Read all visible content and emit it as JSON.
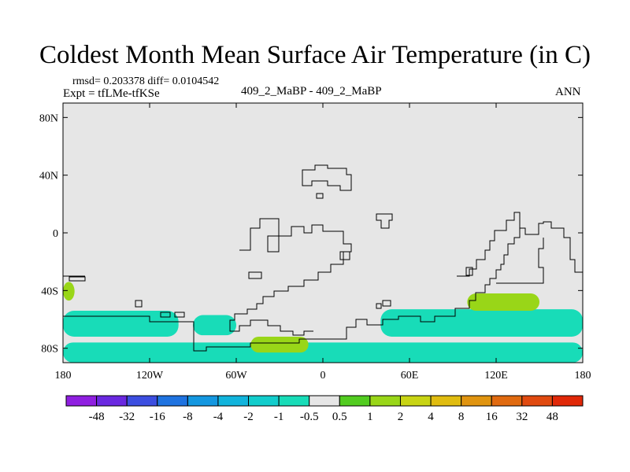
{
  "title": "Coldest Month Mean Surface Air Temperature (in C)",
  "stats": "rmsd= 0.203378 diff= 0.0104542",
  "expt": "Expt = tfLMe-tfKSe",
  "case_label": "409_2_MaBP - 409_2_MaBP",
  "season": "ANN",
  "chart_data": {
    "type": "heatmap",
    "title": "Coldest Month Mean Surface Air Temperature (in C)",
    "projection": "cylindrical equidistant",
    "x_range": [
      -180,
      180
    ],
    "y_range": [
      -90,
      90
    ],
    "x_ticks": [
      {
        "value": -180,
        "label": "180"
      },
      {
        "value": -120,
        "label": "120W"
      },
      {
        "value": -60,
        "label": "60W"
      },
      {
        "value": 0,
        "label": "0"
      },
      {
        "value": 60,
        "label": "60E"
      },
      {
        "value": 120,
        "label": "120E"
      },
      {
        "value": 180,
        "label": "180"
      }
    ],
    "y_ticks": [
      {
        "value": 80,
        "label": "80N"
      },
      {
        "value": 40,
        "label": "40N"
      },
      {
        "value": 0,
        "label": "0"
      },
      {
        "value": -40,
        "label": "40S"
      },
      {
        "value": -80,
        "label": "80S"
      }
    ],
    "colorbar": {
      "levels": [
        "-48",
        "-32",
        "-16",
        "-8",
        "-4",
        "-2",
        "-1",
        "-0.5",
        "0.5",
        "1",
        "2",
        "4",
        "8",
        "16",
        "32",
        "48"
      ],
      "colors": [
        "#8f1fe0",
        "#6a28e0",
        "#3c4ee0",
        "#1f73e0",
        "#1497e0",
        "#11b4dc",
        "#12cdcc",
        "#18dcb8",
        "#e6e6e6",
        "#52cc20",
        "#99d618",
        "#c8d414",
        "#e0bc10",
        "#e09410",
        "#e06a10",
        "#e04a10",
        "#e02808"
      ]
    },
    "anomaly_regions": [
      {
        "name": "south-pacific-band",
        "lon": [
          -180,
          -100
        ],
        "lat": [
          -72,
          -54
        ],
        "value": -0.75
      },
      {
        "name": "south-atlantic-blob",
        "lon": [
          -90,
          -60
        ],
        "lat": [
          -71,
          -57
        ],
        "value": -0.75
      },
      {
        "name": "south-indian-band",
        "lon": [
          40,
          180
        ],
        "lat": [
          -72,
          -53
        ],
        "value": -0.75
      },
      {
        "name": "antarctic-band",
        "lon": [
          -180,
          180
        ],
        "lat": [
          -90,
          -76
        ],
        "value": -0.75
      },
      {
        "name": "southwest-pacific-warm",
        "lon": [
          100,
          150
        ],
        "lat": [
          -54,
          -42
        ],
        "value": 1.5
      },
      {
        "name": "weddell-warm",
        "lon": [
          -50,
          -10
        ],
        "lat": [
          -83,
          -72
        ],
        "value": 1.5
      },
      {
        "name": "south-america-coast-warm",
        "lon": [
          -180,
          -172
        ],
        "lat": [
          -47,
          -34
        ],
        "value": 1.5
      }
    ]
  }
}
